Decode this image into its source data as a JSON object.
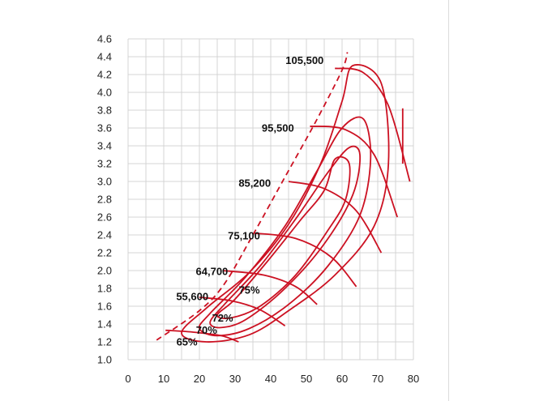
{
  "chart_data": {
    "type": "line",
    "title": "",
    "xlabel": "",
    "ylabel": "",
    "xlim": [
      0,
      80
    ],
    "ylim": [
      1.0,
      4.6
    ],
    "x_ticks": [
      0,
      10,
      20,
      30,
      40,
      50,
      60,
      70,
      80
    ],
    "x_tick_labels": [
      "0",
      "10",
      "20",
      "30",
      "40",
      "50",
      "60",
      "70",
      "80"
    ],
    "y_ticks": [
      1.0,
      1.2,
      1.4,
      1.6,
      1.8,
      2.0,
      2.2,
      2.4,
      2.6,
      2.8,
      3.0,
      3.2,
      3.4,
      3.6,
      3.8,
      4.0,
      4.2,
      4.4,
      4.6
    ],
    "y_tick_labels": [
      "1.0",
      "1.2",
      "1.4",
      "1.6",
      "1.8",
      "2.0",
      "2.2",
      "2.4",
      "2.6",
      "2.8",
      "3.0",
      "3.2",
      "3.4",
      "3.6",
      "3.8",
      "4.0",
      "4.2",
      "4.4",
      "4.6"
    ],
    "grid": true,
    "line_color": "#cc1122",
    "surge_line": {
      "style": "dashed",
      "points": [
        [
          8,
          1.22
        ],
        [
          20,
          1.55
        ],
        [
          27,
          1.85
        ],
        [
          35,
          2.4
        ],
        [
          44,
          3.05
        ],
        [
          53,
          3.7
        ],
        [
          60,
          4.25
        ],
        [
          61.5,
          4.45
        ]
      ]
    },
    "speed_lines": [
      {
        "label": "55,600",
        "points": [
          [
            10.5,
            1.33
          ],
          [
            18,
            1.31
          ],
          [
            26,
            1.27
          ],
          [
            31,
            1.2
          ]
        ]
      },
      {
        "label": "64,700",
        "points": [
          [
            20,
            1.7
          ],
          [
            29,
            1.66
          ],
          [
            37,
            1.56
          ],
          [
            44,
            1.38
          ]
        ]
      },
      {
        "label": "75,100",
        "points": [
          [
            26.5,
            2.0
          ],
          [
            38,
            1.95
          ],
          [
            47,
            1.82
          ],
          [
            53,
            1.62
          ]
        ]
      },
      {
        "label": "85,200",
        "points": [
          [
            35.5,
            2.42
          ],
          [
            47,
            2.36
          ],
          [
            57,
            2.15
          ],
          [
            64,
            1.82
          ]
        ]
      },
      {
        "label": "95,500",
        "points": [
          [
            45,
            3.0
          ],
          [
            55,
            2.92
          ],
          [
            64,
            2.67
          ],
          [
            71,
            2.2
          ]
        ]
      },
      {
        "label": "105,500",
        "points": [
          [
            51,
            3.62
          ],
          [
            61,
            3.58
          ],
          [
            69,
            3.3
          ],
          [
            75.5,
            2.6
          ]
        ]
      },
      {
        "label": "",
        "points": [
          [
            58,
            4.27
          ],
          [
            66,
            4.22
          ],
          [
            73,
            3.85
          ],
          [
            79,
            3.0
          ]
        ]
      }
    ],
    "choke_line": {
      "points": [
        [
          77,
          3.82
        ],
        [
          77,
          3.2
        ]
      ]
    },
    "efficiency_islands": [
      {
        "label": "65%",
        "points": [
          [
            22,
            1.2
          ],
          [
            15,
            1.3
          ],
          [
            22,
            1.58
          ],
          [
            34,
            1.98
          ],
          [
            45,
            2.52
          ],
          [
            54,
            3.2
          ],
          [
            60,
            3.9
          ],
          [
            63,
            4.3
          ],
          [
            71,
            4.1
          ],
          [
            73,
            3.2
          ],
          [
            69,
            2.5
          ],
          [
            58,
            1.95
          ],
          [
            45,
            1.55
          ],
          [
            34,
            1.28
          ]
        ]
      },
      {
        "label": "70%",
        "points": [
          [
            20,
            1.35
          ],
          [
            23,
            1.52
          ],
          [
            33,
            1.93
          ],
          [
            44,
            2.5
          ],
          [
            53,
            3.12
          ],
          [
            60,
            3.6
          ],
          [
            66,
            3.7
          ],
          [
            68,
            3.25
          ],
          [
            65,
            2.62
          ],
          [
            56,
            2.05
          ],
          [
            45,
            1.62
          ],
          [
            34,
            1.35
          ],
          [
            25,
            1.27
          ]
        ]
      },
      {
        "label": "72%",
        "points": [
          [
            23,
            1.42
          ],
          [
            27,
            1.62
          ],
          [
            37,
            2.05
          ],
          [
            47,
            2.58
          ],
          [
            56,
            3.1
          ],
          [
            62,
            3.38
          ],
          [
            65,
            3.3
          ],
          [
            63,
            2.85
          ],
          [
            55,
            2.3
          ],
          [
            44,
            1.8
          ],
          [
            33,
            1.45
          ],
          [
            26,
            1.36
          ]
        ]
      },
      {
        "label": "75%",
        "points": [
          [
            25,
            1.5
          ],
          [
            30,
            1.68
          ],
          [
            39,
            2.1
          ],
          [
            48,
            2.55
          ],
          [
            55,
            2.9
          ],
          [
            58,
            3.25
          ],
          [
            62,
            3.2
          ],
          [
            61,
            2.8
          ],
          [
            56,
            2.45
          ],
          [
            47,
            1.95
          ],
          [
            37,
            1.6
          ],
          [
            29,
            1.47
          ]
        ]
      }
    ],
    "annotations": [
      {
        "text": "105,500",
        "x": 49.5,
        "y": 4.36
      },
      {
        "text": "95,500",
        "x": 42,
        "y": 3.6
      },
      {
        "text": "85,200",
        "x": 35.5,
        "y": 2.98
      },
      {
        "text": "75,100",
        "x": 32.5,
        "y": 2.39
      },
      {
        "text": "64,700",
        "x": 23.5,
        "y": 1.99
      },
      {
        "text": "55,600",
        "x": 18,
        "y": 1.71
      },
      {
        "text": "75%",
        "x": 34,
        "y": 1.78
      },
      {
        "text": "72%",
        "x": 26.5,
        "y": 1.47
      },
      {
        "text": "70%",
        "x": 22,
        "y": 1.33
      },
      {
        "text": "65%",
        "x": 16.5,
        "y": 1.2
      }
    ]
  }
}
